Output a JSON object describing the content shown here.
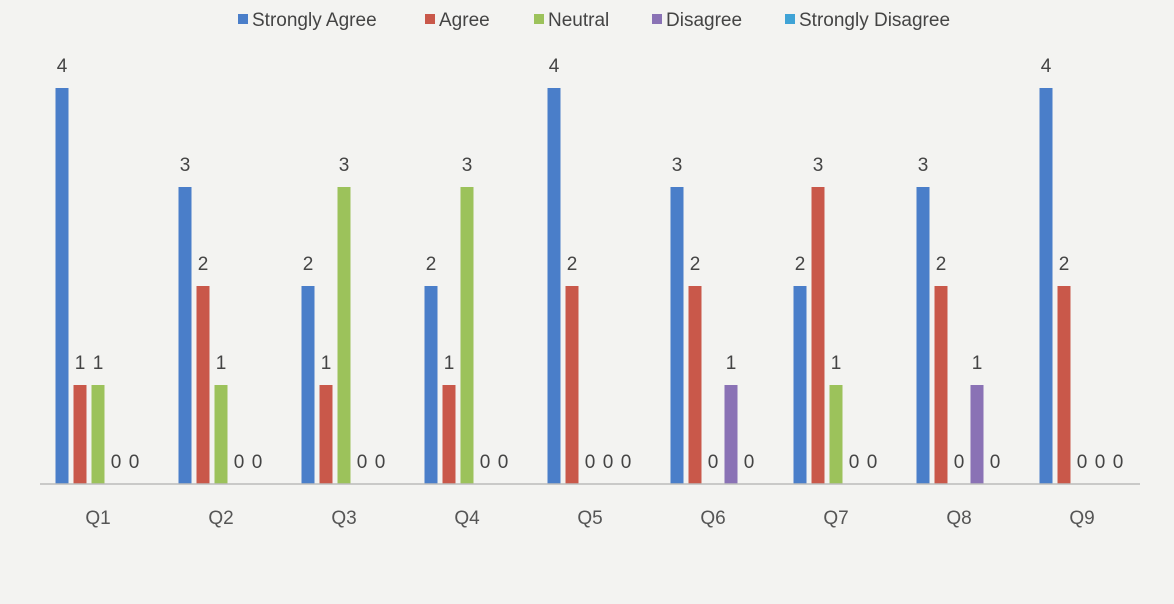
{
  "chart_data": {
    "type": "bar",
    "title": "",
    "xlabel": "",
    "ylabel": "",
    "ylim": [
      0,
      4
    ],
    "grid": false,
    "legend_position": "top",
    "categories": [
      "Q1",
      "Q2",
      "Q3",
      "Q4",
      "Q5",
      "Q6",
      "Q7",
      "Q8",
      "Q9"
    ],
    "series": [
      {
        "name": "Strongly Agree",
        "color": "#4a7ec9",
        "values": [
          4,
          3,
          2,
          2,
          4,
          3,
          2,
          3,
          4
        ]
      },
      {
        "name": "Agree",
        "color": "#c9584a",
        "values": [
          1,
          2,
          1,
          1,
          2,
          2,
          3,
          2,
          2
        ]
      },
      {
        "name": "Neutral",
        "color": "#9cc25b",
        "values": [
          1,
          1,
          3,
          3,
          0,
          0,
          1,
          0,
          0
        ]
      },
      {
        "name": "Disagree",
        "color": "#8a72b5",
        "values": [
          0,
          0,
          0,
          0,
          0,
          1,
          0,
          1,
          0
        ]
      },
      {
        "name": "Strongly Disagree",
        "color": "#3fa3d6",
        "values": [
          0,
          0,
          0,
          0,
          0,
          0,
          0,
          0,
          0
        ]
      }
    ]
  }
}
